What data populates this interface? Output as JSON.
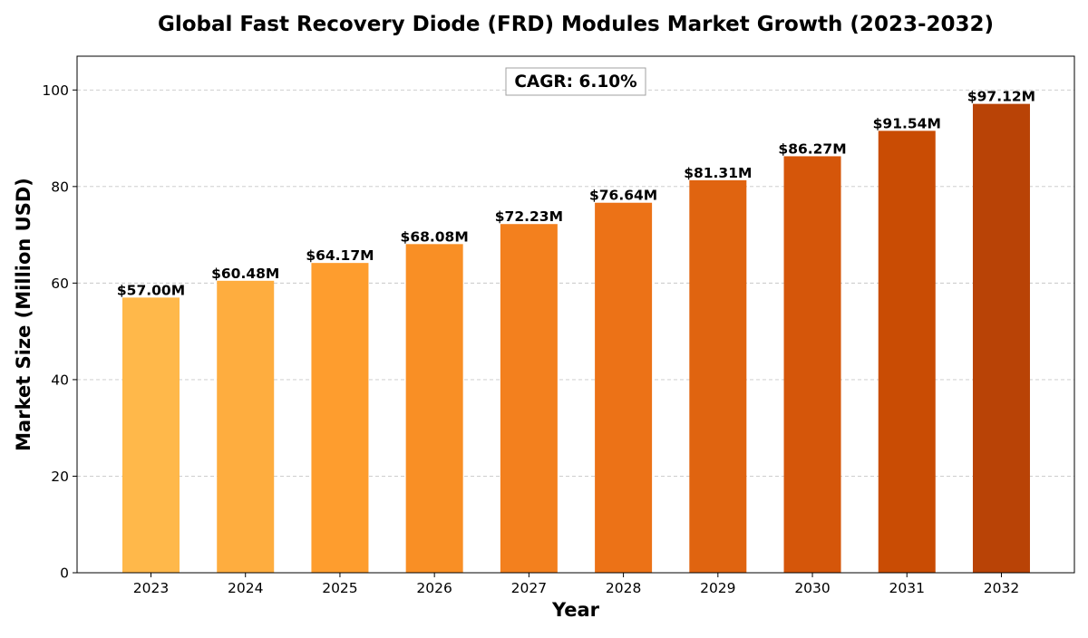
{
  "chart_data": {
    "type": "bar",
    "title": "Global Fast Recovery Diode (FRD) Modules Market Growth (2023-2032)",
    "xlabel": "Year",
    "ylabel": "Market Size (Million USD)",
    "categories": [
      "2023",
      "2024",
      "2025",
      "2026",
      "2027",
      "2028",
      "2029",
      "2030",
      "2031",
      "2032"
    ],
    "values": [
      57.0,
      60.48,
      64.17,
      68.08,
      72.23,
      76.64,
      81.31,
      86.27,
      91.54,
      97.12
    ],
    "value_labels": [
      "$57.00M",
      "$60.48M",
      "$64.17M",
      "$68.08M",
      "$72.23M",
      "$76.64M",
      "$81.31M",
      "$86.27M",
      "$91.54M",
      "$97.12M"
    ],
    "bar_colors": [
      "#FFB84A",
      "#FEAD3F",
      "#FE9D2E",
      "#F98F25",
      "#F3801E",
      "#EC7217",
      "#E06410",
      "#D5560A",
      "#C94C04",
      "#B94306"
    ],
    "ylim": [
      0,
      107
    ],
    "yticks": [
      0,
      20,
      40,
      60,
      80,
      100
    ],
    "ytick_labels": [
      "0",
      "20",
      "40",
      "60",
      "80",
      "100"
    ],
    "grid": "horizontal-dashed",
    "annotation": "CAGR: 6.10%"
  }
}
